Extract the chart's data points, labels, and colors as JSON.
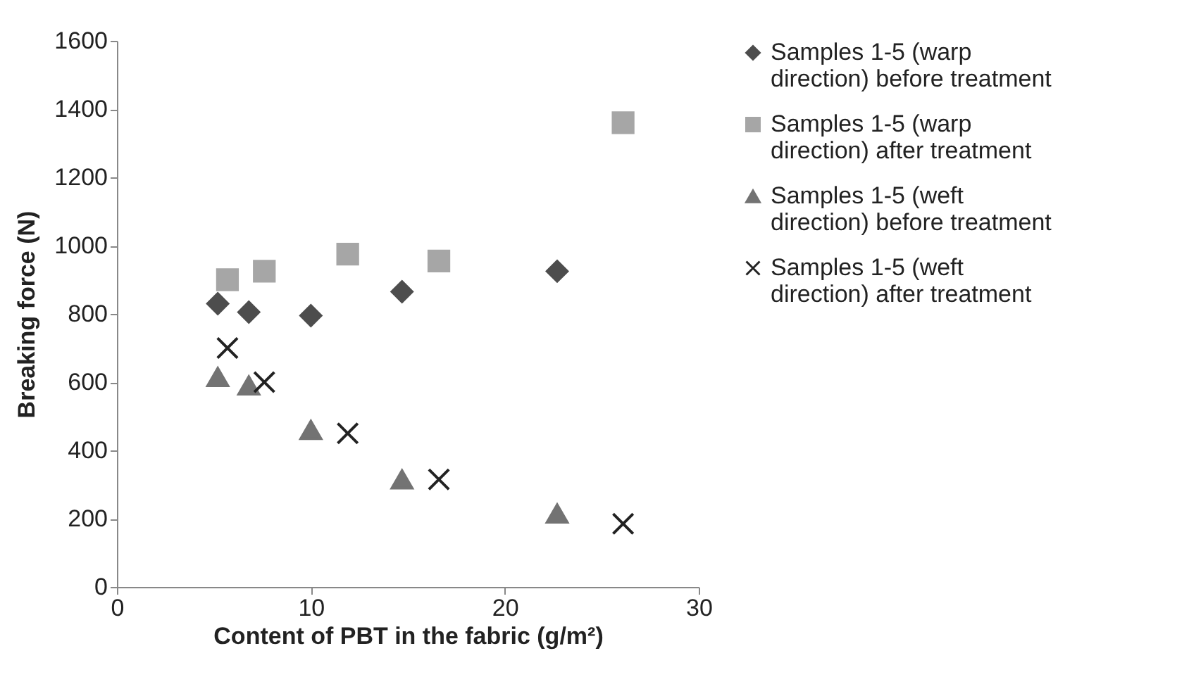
{
  "chart_data": {
    "type": "scatter",
    "xlabel": "Content of PBT in the fabric (g/m²)",
    "ylabel": "Breaking force (N)",
    "xlim": [
      0,
      30
    ],
    "xticks": [
      0,
      10,
      20,
      30
    ],
    "ylim": [
      0,
      1600
    ],
    "yticks": [
      0,
      200,
      400,
      600,
      800,
      1000,
      1200,
      1400,
      1600
    ],
    "grid": false,
    "legend": "right",
    "series": [
      {
        "name": "Samples 1-5 (warp direction) before treatment",
        "color": "#4d4d4d",
        "marker": "diamond",
        "x": [
          5.2,
          6.8,
          10.0,
          14.7,
          22.7
        ],
        "values": [
          830,
          805,
          795,
          865,
          925
        ]
      },
      {
        "name": "Samples 1-5 (warp direction) after treatment",
        "color": "#a6a6a6",
        "marker": "square",
        "x": [
          5.7,
          7.6,
          11.9,
          16.6,
          26.1
        ],
        "values": [
          900,
          925,
          975,
          955,
          1360
        ]
      },
      {
        "name": "Samples 1-5 (weft direction) before treatment",
        "color": "#737373",
        "marker": "triangle",
        "x": [
          5.2,
          6.8,
          10.0,
          14.7,
          22.7
        ],
        "values": [
          615,
          590,
          460,
          315,
          215
        ]
      },
      {
        "name": "Samples 1-5 (weft direction) after treatment",
        "color": "#222222",
        "marker": "cross",
        "x": [
          5.7,
          7.6,
          11.9,
          16.6,
          26.1
        ],
        "values": [
          700,
          600,
          450,
          315,
          185
        ]
      }
    ]
  }
}
